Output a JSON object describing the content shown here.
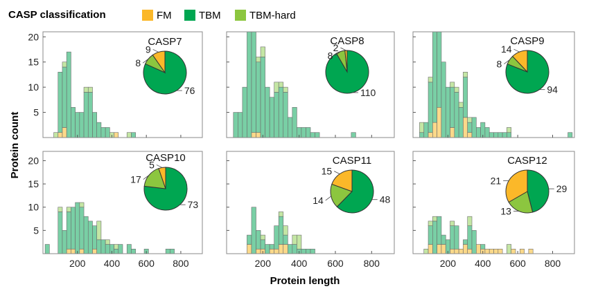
{
  "legend": {
    "title": "CASP classification",
    "items": [
      {
        "label": "FM",
        "color": "#fbb829"
      },
      {
        "label": "TBM",
        "color": "#00a651"
      },
      {
        "label": "TBM-hard",
        "color": "#8cc63f"
      }
    ]
  },
  "axes": {
    "xlabel": "Protein length",
    "ylabel": "Protein count"
  },
  "chart_data": [
    {
      "type": "bar",
      "title": "CASP7",
      "x": [
        75,
        100,
        125,
        150,
        175,
        200,
        225,
        250,
        275,
        300,
        325,
        350,
        375,
        400,
        425,
        450,
        475,
        500,
        525,
        550
      ],
      "series": [
        {
          "name": "FM",
          "values": [
            0,
            1,
            2,
            0,
            0,
            0,
            0,
            0,
            0,
            0,
            0,
            0,
            0,
            0,
            1,
            0,
            0,
            0,
            0,
            0
          ]
        },
        {
          "name": "TBM",
          "values": [
            0,
            12,
            12,
            17,
            6,
            5,
            5,
            9,
            9,
            5,
            3,
            2,
            2,
            0,
            0,
            0,
            0,
            0,
            1,
            0
          ]
        },
        {
          "name": "TBM-hard",
          "values": [
            1,
            0,
            1,
            0,
            0,
            0,
            0,
            1,
            1,
            0,
            0,
            0,
            0,
            1,
            0,
            0,
            0,
            1,
            0,
            0
          ]
        }
      ],
      "pie": [
        {
          "name": "FM",
          "value": 9
        },
        {
          "name": "TBM",
          "value": 76
        },
        {
          "name": "TBM-hard",
          "value": 8
        }
      ]
    },
    {
      "type": "bar",
      "title": "CASP8",
      "x": [
        50,
        75,
        100,
        125,
        150,
        175,
        200,
        225,
        250,
        275,
        300,
        325,
        350,
        375,
        400,
        425,
        450,
        475,
        500,
        525,
        550,
        575,
        600,
        625,
        650,
        675,
        700
      ],
      "series": [
        {
          "name": "FM",
          "values": [
            0,
            0,
            0,
            0,
            1,
            1,
            0,
            0,
            0,
            0,
            0,
            0,
            0,
            0,
            0,
            0,
            0,
            0,
            0,
            0,
            0,
            0,
            0,
            0,
            0,
            0,
            0
          ]
        },
        {
          "name": "TBM",
          "values": [
            5,
            5,
            10,
            21,
            20,
            14,
            16,
            10,
            8,
            9,
            10,
            9,
            4,
            6,
            2,
            2,
            2,
            1,
            1,
            0,
            0,
            0,
            0,
            0,
            0,
            0,
            1
          ]
        },
        {
          "name": "TBM-hard",
          "values": [
            0,
            0,
            0,
            1,
            0,
            1,
            2,
            0,
            0,
            2,
            1,
            1,
            0,
            0,
            0,
            0,
            0,
            0,
            0,
            0,
            0,
            0,
            0,
            0,
            0,
            0,
            0
          ]
        }
      ],
      "pie": [
        {
          "name": "FM",
          "value": 2
        },
        {
          "name": "TBM",
          "value": 110
        },
        {
          "name": "TBM-hard",
          "value": 8
        }
      ]
    },
    {
      "type": "bar",
      "title": "CASP9",
      "x": [
        50,
        75,
        100,
        125,
        150,
        175,
        200,
        225,
        250,
        275,
        300,
        325,
        350,
        375,
        400,
        425,
        450,
        475,
        500,
        525,
        550,
        575,
        600,
        625,
        900
      ],
      "series": [
        {
          "name": "FM",
          "values": [
            0,
            0,
            1,
            3,
            6,
            0,
            0,
            2,
            0,
            0,
            4,
            1,
            0,
            0,
            0,
            0,
            0,
            0,
            0,
            0,
            0,
            0,
            0,
            0,
            0
          ]
        },
        {
          "name": "TBM",
          "values": [
            1,
            3,
            10,
            20,
            15,
            15,
            10,
            8,
            9,
            6,
            8,
            2,
            4,
            2,
            3,
            2,
            1,
            1,
            1,
            1,
            1,
            0,
            0,
            0,
            1
          ]
        },
        {
          "name": "TBM-hard",
          "values": [
            2,
            0,
            1,
            0,
            0,
            0,
            0,
            1,
            1,
            1,
            1,
            1,
            0,
            0,
            0,
            0,
            0,
            0,
            0,
            0,
            1,
            0,
            0,
            0,
            0
          ]
        }
      ],
      "pie": [
        {
          "name": "FM",
          "value": 14
        },
        {
          "name": "TBM",
          "value": 94
        },
        {
          "name": "TBM-hard",
          "value": 8
        }
      ]
    },
    {
      "type": "bar",
      "title": "CASP10",
      "x": [
        25,
        50,
        75,
        100,
        125,
        150,
        175,
        200,
        225,
        250,
        275,
        300,
        325,
        350,
        375,
        400,
        425,
        450,
        475,
        500,
        525,
        550,
        575,
        600,
        625,
        650,
        675,
        700,
        725,
        750
      ],
      "series": [
        {
          "name": "FM",
          "values": [
            0,
            0,
            0,
            0,
            0,
            1,
            1,
            0,
            1,
            0,
            0,
            1,
            0,
            0,
            0,
            0,
            0,
            0,
            0,
            0,
            0,
            0,
            0,
            0,
            0,
            0,
            0,
            0,
            0,
            0
          ]
        },
        {
          "name": "TBM",
          "values": [
            2,
            0,
            0,
            9,
            5,
            8,
            9,
            11,
            9,
            8,
            7,
            5,
            3,
            3,
            2,
            2,
            1,
            2,
            0,
            2,
            1,
            0,
            0,
            1,
            0,
            0,
            0,
            0,
            1,
            1
          ]
        },
        {
          "name": "TBM-hard",
          "values": [
            0,
            0,
            0,
            1,
            0,
            1,
            0,
            0,
            1,
            0,
            0,
            0,
            4,
            0,
            1,
            0,
            1,
            0,
            0,
            0,
            0,
            0,
            0,
            0,
            0,
            0,
            0,
            0,
            0,
            0
          ]
        }
      ],
      "pie": [
        {
          "name": "FM",
          "value": 5
        },
        {
          "name": "TBM",
          "value": 73
        },
        {
          "name": "TBM-hard",
          "value": 17
        }
      ]
    },
    {
      "type": "bar",
      "title": "CASP11",
      "x": [
        100,
        125,
        150,
        175,
        200,
        225,
        250,
        275,
        300,
        325,
        350,
        375,
        400,
        425,
        450,
        475,
        500,
        525,
        550,
        575
      ],
      "series": [
        {
          "name": "FM",
          "values": [
            0,
            2,
            0,
            1,
            1,
            0,
            1,
            1,
            2,
            2,
            0,
            0,
            0,
            0,
            0,
            0,
            0,
            0,
            0,
            0
          ]
        },
        {
          "name": "TBM",
          "values": [
            0,
            2,
            10,
            4,
            2,
            2,
            1,
            5,
            6,
            2,
            2,
            2,
            1,
            1,
            1,
            1,
            0,
            0,
            0,
            0
          ]
        },
        {
          "name": "TBM-hard",
          "values": [
            0,
            0,
            0,
            0,
            1,
            0,
            0,
            0,
            1,
            2,
            0,
            2,
            3,
            0,
            0,
            0,
            0,
            0,
            0,
            0
          ]
        }
      ],
      "pie": [
        {
          "name": "FM",
          "value": 15
        },
        {
          "name": "TBM",
          "value": 48
        },
        {
          "name": "TBM-hard",
          "value": 14
        }
      ]
    },
    {
      "type": "bar",
      "title": "CASP12",
      "x": [
        50,
        75,
        100,
        125,
        150,
        175,
        200,
        225,
        250,
        275,
        300,
        325,
        350,
        375,
        400,
        425,
        450,
        475,
        500,
        525,
        550,
        575,
        600,
        625,
        650,
        675
      ],
      "series": [
        {
          "name": "FM",
          "values": [
            0,
            0,
            2,
            0,
            2,
            2,
            0,
            1,
            1,
            1,
            2,
            1,
            0,
            2,
            1,
            1,
            1,
            1,
            1,
            0,
            0,
            1,
            0,
            1,
            0,
            1
          ]
        },
        {
          "name": "TBM",
          "values": [
            0,
            0,
            4,
            7,
            6,
            2,
            3,
            5,
            5,
            0,
            1,
            5,
            5,
            0,
            1,
            0,
            0,
            0,
            0,
            0,
            0,
            0,
            0,
            0,
            0,
            0
          ]
        },
        {
          "name": "TBM-hard",
          "values": [
            0,
            1,
            1,
            1,
            0,
            0,
            0,
            1,
            0,
            0,
            0,
            2,
            0,
            0,
            0,
            0,
            0,
            0,
            0,
            0,
            2,
            0,
            0,
            0,
            0,
            0
          ]
        }
      ],
      "pie": [
        {
          "name": "FM",
          "value": 21
        },
        {
          "name": "TBM",
          "value": 29
        },
        {
          "name": "TBM-hard",
          "value": 13
        }
      ]
    }
  ],
  "scales": {
    "xlim": [
      0,
      925
    ],
    "ylim_top": [
      0,
      21
    ],
    "ylim_bottom": [
      0,
      22
    ],
    "yticks": [
      5,
      10,
      15,
      20
    ],
    "xticks": [
      200,
      400,
      600,
      800
    ]
  },
  "colors": {
    "FM": "#fbb829",
    "TBM": "#00a651",
    "TBM-hard": "#8cc63f",
    "bar_FM": "#fbd98a",
    "bar_TBM": "#79cfa5",
    "bar_TBM-hard": "#c4e6a4",
    "bar_stroke": "#6b6b6b"
  }
}
